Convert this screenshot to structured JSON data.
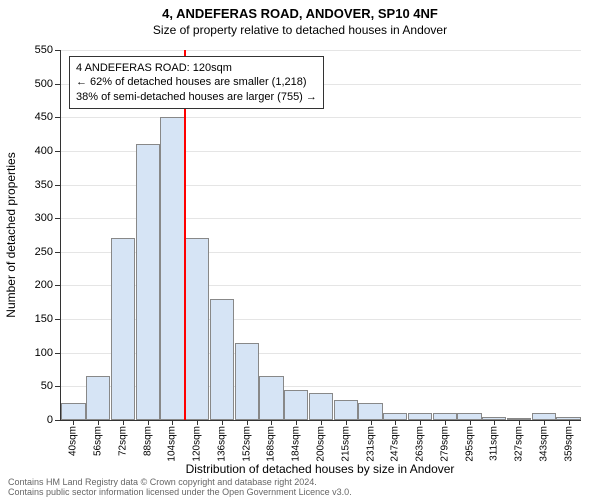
{
  "title": "4, ANDEFERAS ROAD, ANDOVER, SP10 4NF",
  "subtitle": "Size of property relative to detached houses in Andover",
  "chart": {
    "type": "histogram",
    "ylabel": "Number of detached properties",
    "xlabel": "Distribution of detached houses by size in Andover",
    "ylim": [
      0,
      550
    ],
    "ytick_step": 50,
    "yticks": [
      0,
      50,
      100,
      150,
      200,
      250,
      300,
      350,
      400,
      450,
      500,
      550
    ],
    "xcategories": [
      "40sqm",
      "56sqm",
      "72sqm",
      "88sqm",
      "104sqm",
      "120sqm",
      "136sqm",
      "152sqm",
      "168sqm",
      "184sqm",
      "200sqm",
      "215sqm",
      "231sqm",
      "247sqm",
      "263sqm",
      "279sqm",
      "295sqm",
      "311sqm",
      "327sqm",
      "343sqm",
      "359sqm"
    ],
    "values": [
      25,
      65,
      270,
      410,
      450,
      270,
      180,
      115,
      65,
      45,
      40,
      30,
      25,
      10,
      10,
      10,
      10,
      5,
      0,
      10,
      5
    ],
    "bar_color": "#d6e4f5",
    "bar_border_color": "#888888",
    "background_color": "#ffffff",
    "grid_color": "#e5e5e5",
    "marker": {
      "position_index": 5,
      "color": "#ff0000",
      "width": 2
    },
    "annotation": {
      "line1": "4 ANDEFERAS ROAD: 120sqm",
      "line2": "← 62% of detached houses are smaller (1,218)",
      "line3": "38% of semi-detached houses are larger (755) →",
      "border_color": "#333333"
    },
    "title_fontsize": 13,
    "subtitle_fontsize": 12,
    "label_fontsize": 12,
    "tick_fontsize": 11
  },
  "footer": {
    "line1": "Contains HM Land Registry data © Crown copyright and database right 2024.",
    "line2": "Contains public sector information licensed under the Open Government Licence v3.0."
  }
}
